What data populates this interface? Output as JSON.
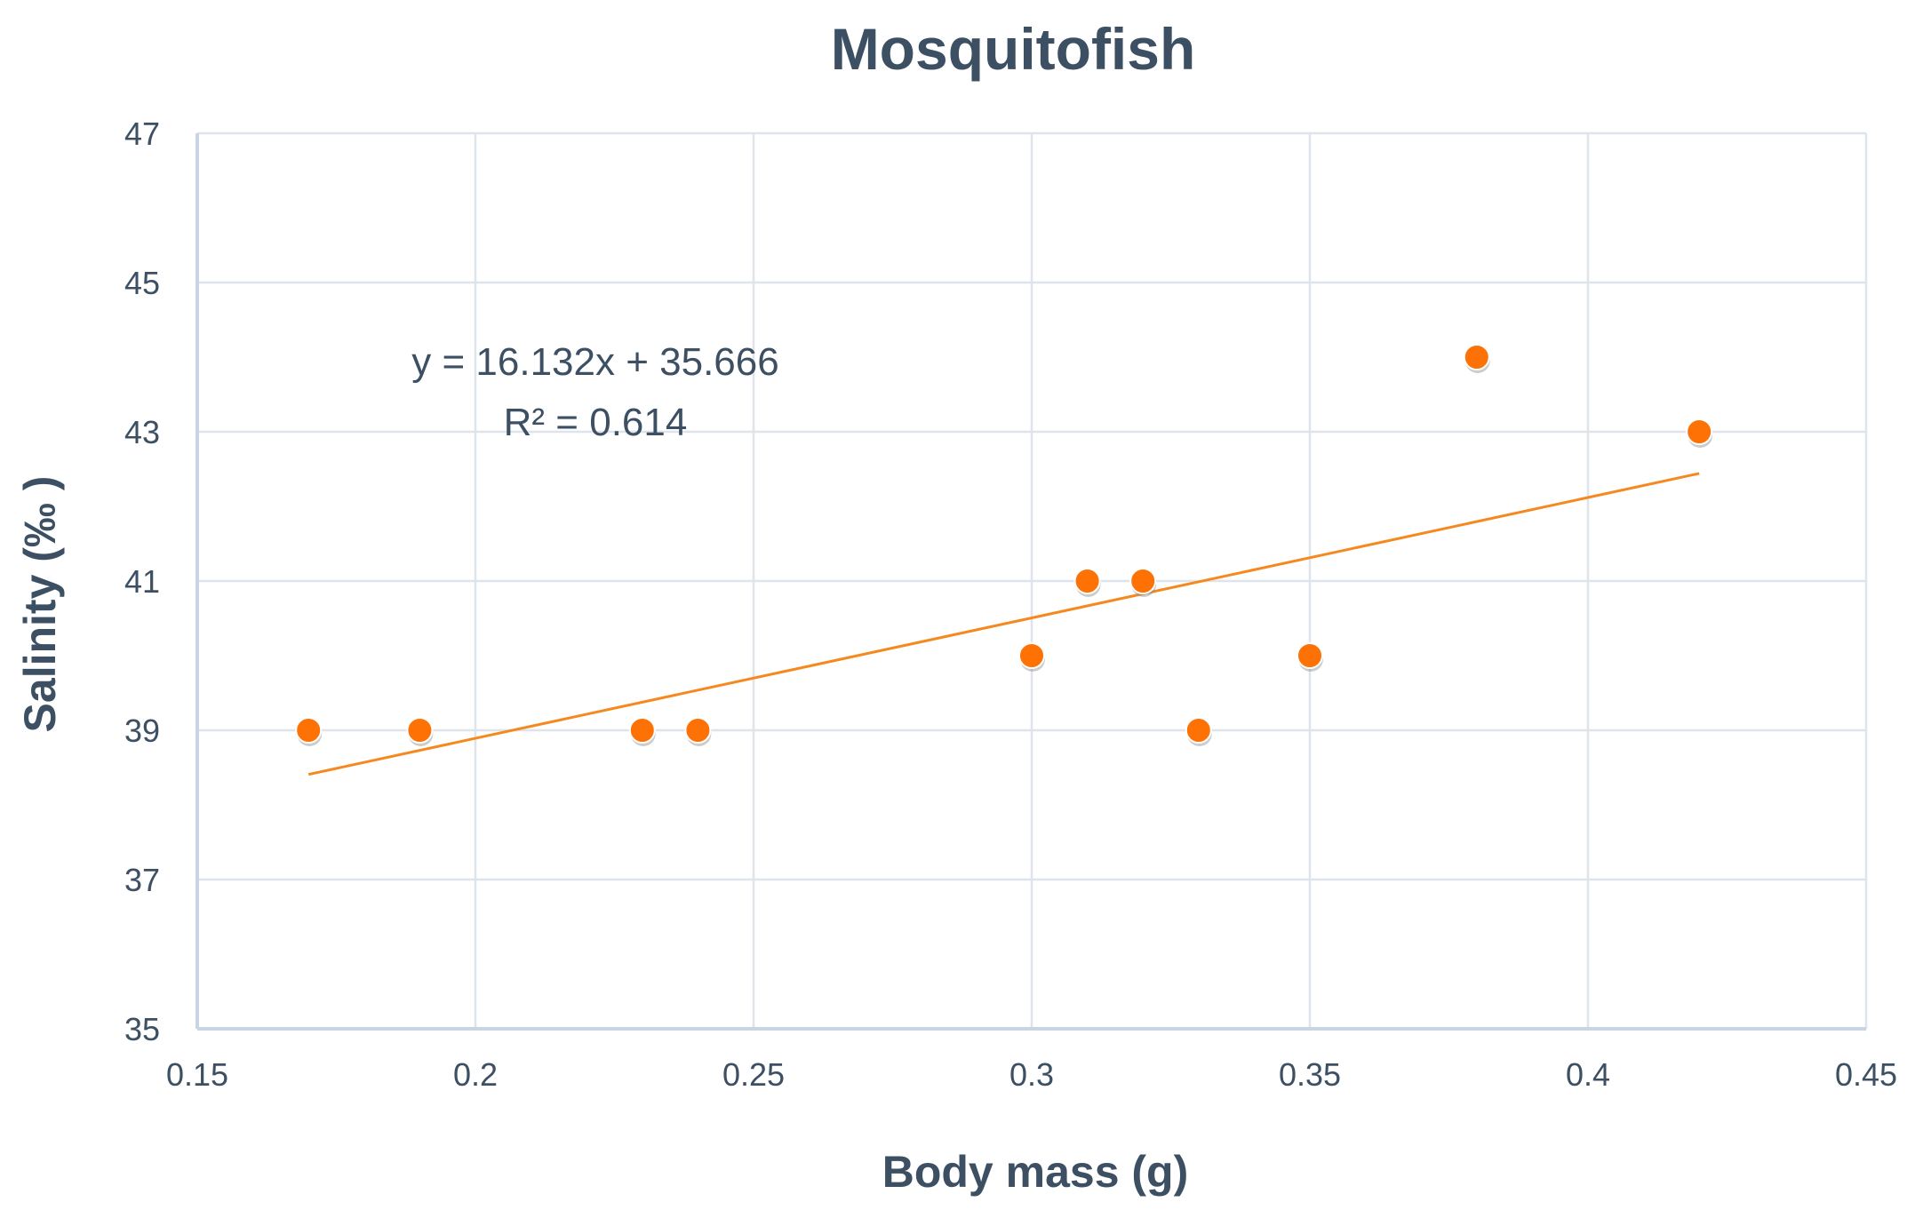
{
  "chart_data": {
    "type": "scatter",
    "title": "Mosquitofish",
    "xlabel": "Body mass (g)",
    "ylabel": "Salinity (‰ )",
    "xlim": [
      0.15,
      0.45
    ],
    "ylim": [
      35,
      47
    ],
    "x_ticks": [
      0.15,
      0.2,
      0.25,
      0.3,
      0.35,
      0.4,
      0.45
    ],
    "x_tick_labels": [
      "0.15",
      "0.2",
      "0.25",
      "0.3",
      "0.35",
      "0.4",
      "0.45"
    ],
    "y_ticks": [
      35,
      37,
      39,
      41,
      43,
      45,
      47
    ],
    "y_tick_labels": [
      "35",
      "37",
      "39",
      "41",
      "43",
      "45",
      "47"
    ],
    "grid": true,
    "points": [
      {
        "x": 0.17,
        "y": 39
      },
      {
        "x": 0.19,
        "y": 39
      },
      {
        "x": 0.23,
        "y": 39
      },
      {
        "x": 0.24,
        "y": 39
      },
      {
        "x": 0.3,
        "y": 40
      },
      {
        "x": 0.31,
        "y": 41
      },
      {
        "x": 0.32,
        "y": 41
      },
      {
        "x": 0.33,
        "y": 39
      },
      {
        "x": 0.35,
        "y": 40
      },
      {
        "x": 0.38,
        "y": 44
      },
      {
        "x": 0.42,
        "y": 43
      }
    ],
    "trendline": {
      "slope": 16.132,
      "intercept": 35.666,
      "x_range": [
        0.17,
        0.42
      ]
    },
    "annotations": {
      "equation": "y = 16.132x + 35.666",
      "r_squared": "R² = 0.614"
    },
    "colors": {
      "points": "#fd7105",
      "trendline": "#f5891f",
      "text": "#3c4f63",
      "grid": "#dde4ec"
    }
  }
}
